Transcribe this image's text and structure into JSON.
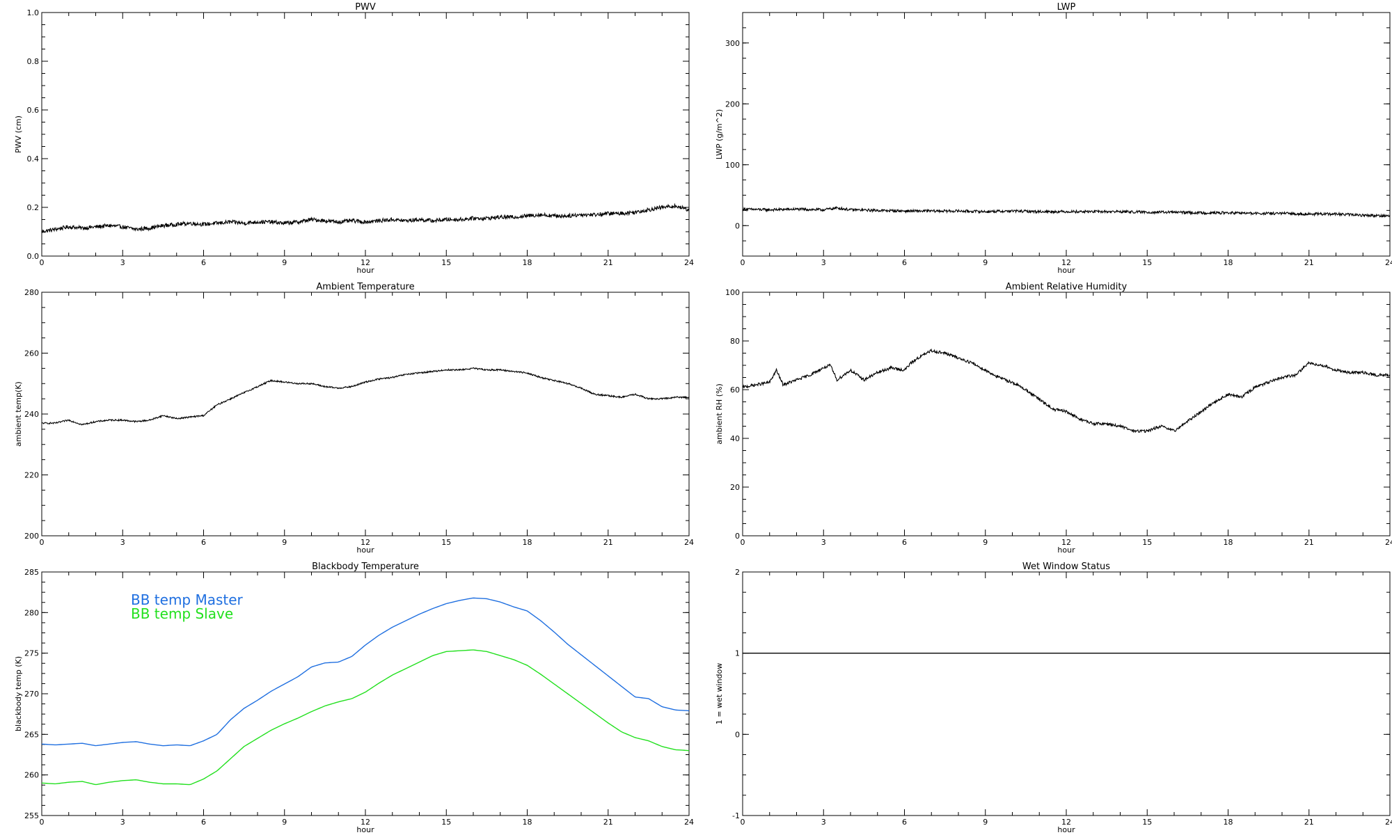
{
  "chart_data": [
    {
      "id": "pwv",
      "type": "line",
      "title": "PWV",
      "xlabel": "hour",
      "ylabel": "PWV (cm)",
      "xlim": [
        0,
        24
      ],
      "ylim": [
        0.0,
        1.0
      ],
      "xticks": [
        "0",
        "3",
        "6",
        "9",
        "12",
        "15",
        "18",
        "21",
        "24"
      ],
      "yticks": [
        "0.0",
        "0.2",
        "0.4",
        "0.6",
        "0.8",
        "1.0"
      ],
      "series": [
        {
          "color": "#000000",
          "noise": 0.008,
          "x": [
            0,
            0.5,
            1,
            1.5,
            2,
            2.5,
            3,
            3.5,
            4,
            4.5,
            5,
            5.5,
            6,
            6.5,
            7,
            7.5,
            8,
            8.5,
            9,
            9.5,
            10,
            10.5,
            11,
            11.5,
            12,
            12.5,
            13,
            13.5,
            14,
            14.5,
            15,
            15.5,
            16,
            16.5,
            17,
            17.5,
            18,
            18.5,
            19,
            19.5,
            20,
            20.5,
            21,
            21.5,
            22,
            22.5,
            23,
            23.5,
            24
          ],
          "y": [
            0.1,
            0.11,
            0.12,
            0.115,
            0.12,
            0.125,
            0.12,
            0.11,
            0.115,
            0.125,
            0.13,
            0.135,
            0.13,
            0.135,
            0.14,
            0.135,
            0.14,
            0.14,
            0.135,
            0.14,
            0.15,
            0.145,
            0.14,
            0.145,
            0.14,
            0.145,
            0.15,
            0.145,
            0.15,
            0.145,
            0.15,
            0.15,
            0.155,
            0.155,
            0.16,
            0.16,
            0.165,
            0.17,
            0.165,
            0.165,
            0.17,
            0.17,
            0.175,
            0.175,
            0.18,
            0.19,
            0.2,
            0.205,
            0.19
          ]
        }
      ]
    },
    {
      "id": "lwp",
      "type": "line",
      "title": "LWP",
      "xlabel": "hour",
      "ylabel": "LWP (g/m^2)",
      "xlim": [
        0,
        24
      ],
      "ylim": [
        -50,
        350
      ],
      "xticks": [
        "0",
        "3",
        "6",
        "9",
        "12",
        "15",
        "18",
        "21",
        "24"
      ],
      "yticks": [
        "0",
        "100",
        "200",
        "300"
      ],
      "series": [
        {
          "color": "#000000",
          "noise": 2.2,
          "x": [
            0,
            1,
            2,
            3,
            3.5,
            4,
            5,
            6,
            7,
            8,
            9,
            10,
            11,
            12,
            13,
            14,
            15,
            16,
            17,
            18,
            19,
            20,
            21,
            22,
            23,
            24
          ],
          "y": [
            27,
            26,
            27,
            26,
            29,
            26,
            25,
            24,
            24,
            24,
            23,
            24,
            23,
            23,
            23,
            23,
            22,
            22,
            21,
            21,
            20,
            20,
            19,
            19,
            17,
            16
          ]
        }
      ]
    },
    {
      "id": "ambient-temperature",
      "type": "line",
      "title": "Ambient Temperature",
      "xlabel": "hour",
      "ylabel": "ambient temp(K)",
      "xlim": [
        0,
        24
      ],
      "ylim": [
        200,
        280
      ],
      "xticks": [
        "0",
        "3",
        "6",
        "9",
        "12",
        "15",
        "18",
        "21",
        "24"
      ],
      "yticks": [
        "200",
        "220",
        "240",
        "260",
        "280"
      ],
      "series": [
        {
          "color": "#000000",
          "noise": 0.25,
          "x": [
            0,
            0.5,
            1,
            1.5,
            2,
            2.5,
            3,
            3.5,
            4,
            4.5,
            5,
            5.5,
            6,
            6.5,
            7,
            7.5,
            8,
            8.5,
            9,
            9.5,
            10,
            10.5,
            11,
            11.5,
            12,
            12.5,
            13,
            13.5,
            14,
            14.5,
            15,
            15.5,
            16,
            16.5,
            17,
            17.5,
            18,
            18.5,
            19,
            19.5,
            20,
            20.5,
            21,
            21.5,
            22,
            22.5,
            23,
            23.5,
            24
          ],
          "y": [
            237,
            237,
            238,
            236.5,
            237.5,
            238,
            238,
            237.5,
            238,
            239.5,
            238.5,
            239,
            239.5,
            243,
            245,
            247,
            249,
            251,
            250.5,
            250,
            250,
            249,
            248.5,
            249,
            250.5,
            251.5,
            252,
            253,
            253.5,
            254,
            254.5,
            254.5,
            255,
            254.5,
            254.5,
            254,
            253.5,
            252,
            251,
            250,
            248.5,
            246.5,
            246,
            245.5,
            246.5,
            245,
            245,
            245.5,
            245.5
          ]
        }
      ]
    },
    {
      "id": "ambient-relative-humidity",
      "type": "line",
      "title": "Ambient Relative Humidity",
      "xlabel": "hour",
      "ylabel": "ambient RH (%)",
      "xlim": [
        0,
        24
      ],
      "ylim": [
        0,
        100
      ],
      "xticks": [
        "0",
        "3",
        "6",
        "9",
        "12",
        "15",
        "18",
        "21",
        "24"
      ],
      "yticks": [
        "0",
        "20",
        "40",
        "60",
        "80",
        "100"
      ],
      "series": [
        {
          "color": "#000000",
          "noise": 0.6,
          "x": [
            0,
            0.5,
            1,
            1.25,
            1.5,
            2,
            2.5,
            3,
            3.25,
            3.5,
            4,
            4.5,
            5,
            5.5,
            6,
            6.25,
            6.5,
            7,
            7.5,
            8,
            8.5,
            9,
            9.5,
            10,
            10.5,
            11,
            11.5,
            12,
            12.5,
            13,
            13.5,
            14,
            14.5,
            15,
            15.5,
            16,
            16.5,
            17,
            17.5,
            18,
            18.5,
            19,
            19.5,
            20,
            20.5,
            21,
            21.5,
            22,
            22.5,
            23,
            23.5,
            24
          ],
          "y": [
            61,
            62,
            63,
            68,
            62,
            64,
            66,
            69,
            70,
            64,
            68,
            64,
            67,
            69,
            68,
            71,
            73,
            76,
            75,
            73,
            71,
            68,
            65,
            63,
            60,
            56,
            52,
            51,
            48,
            46,
            46,
            45,
            43,
            43,
            45,
            43,
            47,
            51,
            55,
            58,
            57,
            61,
            63,
            65,
            66,
            71,
            70,
            68,
            67,
            67,
            66,
            66
          ]
        }
      ]
    },
    {
      "id": "blackbody-temperature",
      "type": "line",
      "title": "Blackbody Temperature",
      "xlabel": "hour",
      "ylabel": "blackbody temp (K)",
      "xlim": [
        0,
        24
      ],
      "ylim": [
        255,
        285
      ],
      "xticks": [
        "0",
        "3",
        "6",
        "9",
        "12",
        "15",
        "18",
        "21",
        "24"
      ],
      "yticks": [
        "255",
        "260",
        "265",
        "270",
        "275",
        "280",
        "285"
      ],
      "legend_position": "top-left",
      "series": [
        {
          "name": "BB temp Master",
          "color": "#1f6fe0",
          "noise": 0,
          "x": [
            0,
            0.5,
            1,
            1.5,
            2,
            2.5,
            3,
            3.5,
            4,
            4.5,
            5,
            5.5,
            6,
            6.5,
            7,
            7.5,
            8,
            8.5,
            9,
            9.5,
            10,
            10.5,
            11,
            11.5,
            12,
            12.5,
            13,
            13.5,
            14,
            14.5,
            15,
            15.5,
            16,
            16.5,
            17,
            17.5,
            18,
            18.5,
            19,
            19.5,
            20,
            20.5,
            21,
            21.5,
            22,
            22.5,
            23,
            23.5,
            24
          ],
          "y": [
            263.8,
            263.7,
            263.8,
            263.9,
            263.6,
            263.8,
            264.0,
            264.1,
            263.8,
            263.6,
            263.7,
            263.6,
            264.2,
            265.0,
            266.8,
            268.2,
            269.2,
            270.3,
            271.2,
            272.1,
            273.3,
            273.8,
            273.9,
            274.6,
            276.0,
            277.2,
            278.2,
            279.0,
            279.8,
            280.5,
            281.1,
            281.5,
            281.8,
            281.7,
            281.3,
            280.7,
            280.2,
            279.0,
            277.6,
            276.1,
            274.8,
            273.5,
            272.2,
            270.9,
            269.6,
            269.4,
            268.4,
            268.0,
            267.9
          ]
        },
        {
          "name": "BB temp Slave",
          "color": "#22e01e",
          "noise": 0,
          "x": [
            0,
            0.5,
            1,
            1.5,
            2,
            2.5,
            3,
            3.5,
            4,
            4.5,
            5,
            5.5,
            6,
            6.5,
            7,
            7.5,
            8,
            8.5,
            9,
            9.5,
            10,
            10.5,
            11,
            11.5,
            12,
            12.5,
            13,
            13.5,
            14,
            14.5,
            15,
            15.5,
            16,
            16.5,
            17,
            17.5,
            18,
            18.5,
            19,
            19.5,
            20,
            20.5,
            21,
            21.5,
            22,
            22.5,
            23,
            23.5,
            24
          ],
          "y": [
            259.0,
            258.9,
            259.1,
            259.2,
            258.8,
            259.1,
            259.3,
            259.4,
            259.1,
            258.9,
            258.9,
            258.8,
            259.5,
            260.5,
            262.0,
            263.5,
            264.5,
            265.5,
            266.3,
            267.0,
            267.8,
            268.5,
            269.0,
            269.4,
            270.2,
            271.3,
            272.3,
            273.1,
            273.9,
            274.7,
            275.2,
            275.3,
            275.4,
            275.2,
            274.7,
            274.2,
            273.5,
            272.4,
            271.2,
            270.0,
            268.8,
            267.6,
            266.4,
            265.3,
            264.6,
            264.2,
            263.5,
            263.1,
            263.0
          ]
        }
      ]
    },
    {
      "id": "wet-window-status",
      "type": "line",
      "title": "Wet Window Status",
      "xlabel": "hour",
      "ylabel": "1 = wet window",
      "xlim": [
        0,
        24
      ],
      "ylim": [
        -1,
        2
      ],
      "xticks": [
        "0",
        "3",
        "6",
        "9",
        "12",
        "15",
        "18",
        "21",
        "24"
      ],
      "yticks": [
        "-1",
        "0",
        "1",
        "2"
      ],
      "series": [
        {
          "color": "#000000",
          "noise": 0,
          "x": [
            0,
            24
          ],
          "y": [
            1,
            1
          ]
        }
      ]
    }
  ]
}
